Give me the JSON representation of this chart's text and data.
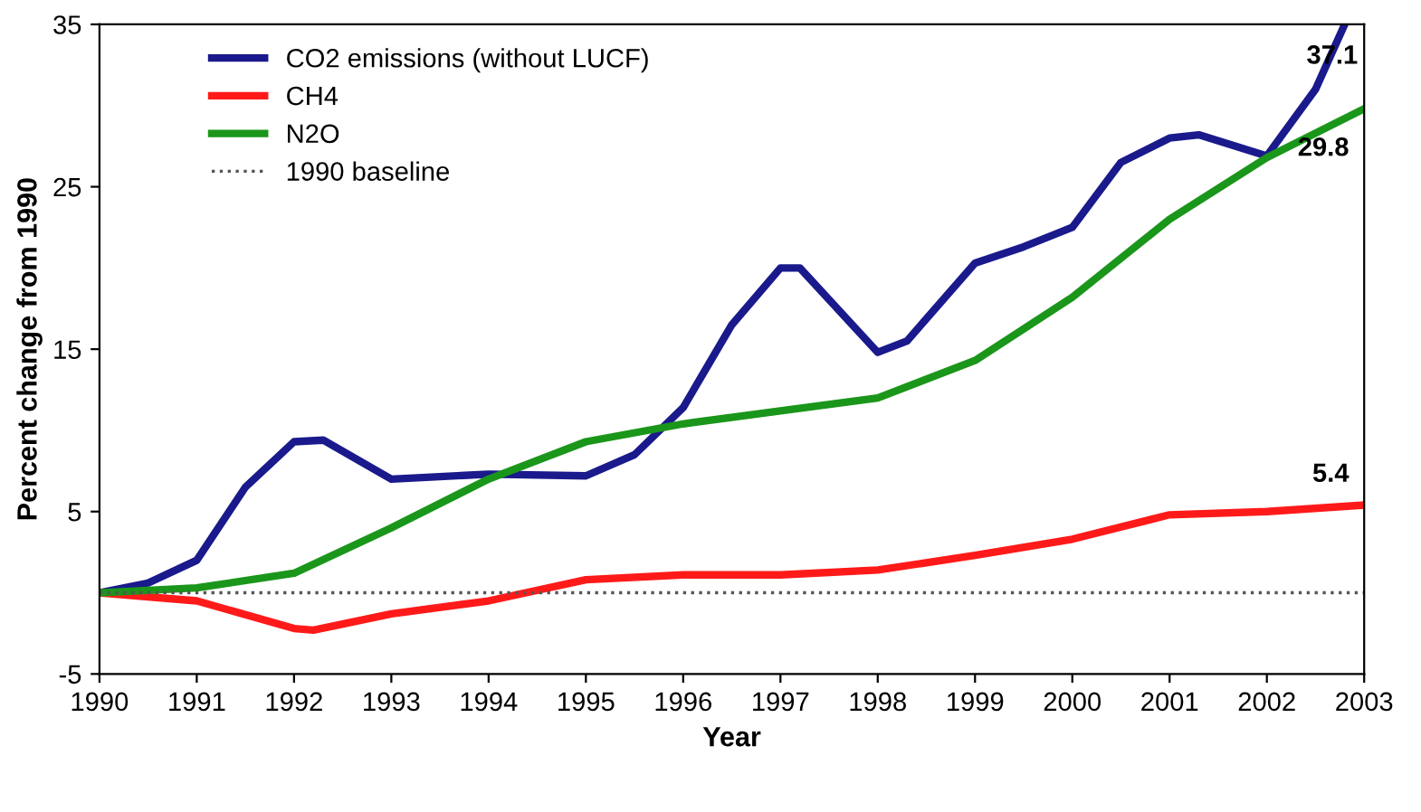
{
  "chart_data": {
    "type": "line",
    "xlabel": "Year",
    "ylabel": "Percent change from 1990",
    "xlim": [
      1990,
      2003
    ],
    "xticks": [
      1990,
      1991,
      1992,
      1993,
      1994,
      1995,
      1996,
      1997,
      1998,
      1999,
      2000,
      2001,
      2002,
      2003
    ],
    "ylim": [
      -5,
      35
    ],
    "yticks": [
      -5,
      5,
      15,
      25,
      35
    ],
    "grid": false,
    "legend": "top left",
    "marker": "none",
    "line_style": "solid",
    "series": [
      {
        "name": "CO2 emissions (without LUCF)",
        "color": "#1a1a8c",
        "x": [
          1990,
          1990.5,
          1991,
          1991.5,
          1992,
          1992.3,
          1993,
          1994,
          1995,
          1995.5,
          1996,
          1996.5,
          1997,
          1997.2,
          1998,
          1998.3,
          1999,
          1999.5,
          2000,
          2000.5,
          2001,
          2001.3,
          2002,
          2002.5,
          2002.8
        ],
        "values": [
          0,
          0.6,
          2,
          6.5,
          9.3,
          9.4,
          7,
          7.3,
          7.2,
          8.5,
          11.4,
          16.5,
          20,
          20,
          14.8,
          15.5,
          20.3,
          21.3,
          22.5,
          26.5,
          28,
          28.2,
          26.9,
          31,
          35
        ]
      },
      {
        "name": "CH4",
        "color": "#ff1a1a",
        "x": [
          1990,
          1991,
          1992,
          1992.2,
          1993,
          1994,
          1995,
          1996,
          1997,
          1998,
          1999,
          2000,
          2001,
          2002,
          2003
        ],
        "values": [
          0,
          -0.5,
          -2.2,
          -2.3,
          -1.3,
          -0.5,
          0.8,
          1.1,
          1.1,
          1.4,
          2.3,
          3.3,
          4.8,
          5.0,
          5.4
        ]
      },
      {
        "name": "N2O",
        "color": "#1a961a",
        "x": [
          1990,
          1991,
          1992,
          1993,
          1994,
          1995,
          1996,
          1997,
          1998,
          1999,
          2000,
          2001,
          2002,
          2003
        ],
        "values": [
          0,
          0.3,
          1.2,
          4,
          7,
          9.3,
          10.4,
          11.2,
          12,
          14.3,
          18.2,
          23,
          26.8,
          29.8
        ]
      }
    ],
    "ref_lines": [
      {
        "axis": "y",
        "value": 0,
        "label": "1990 baseline",
        "color": "#555555",
        "line_style": "dotted"
      }
    ],
    "annotations": [
      "37.1",
      {
        "text": "29.8",
        "x": 2003,
        "y": 29.8
      },
      {
        "text": "5.4",
        "x": 2003,
        "y": 5.4
      }
    ]
  }
}
